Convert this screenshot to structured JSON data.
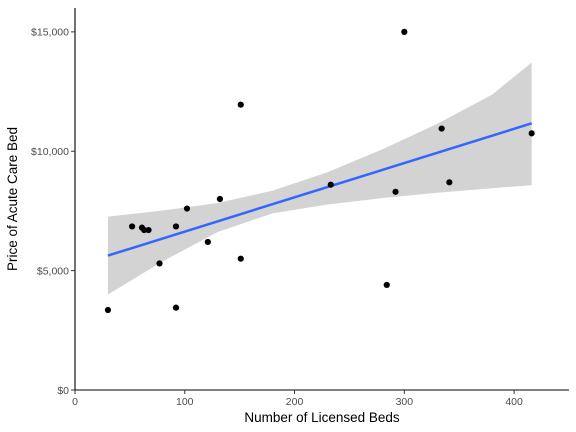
{
  "chart_data": {
    "type": "scatter",
    "title": "",
    "xlabel": "Number of Licensed Beds",
    "ylabel": "Price of Acute Care Bed",
    "xlim": [
      0,
      450
    ],
    "ylim": [
      0,
      16000
    ],
    "x_ticks": [
      {
        "value": 0,
        "label": "0"
      },
      {
        "value": 100,
        "label": "100"
      },
      {
        "value": 200,
        "label": "200"
      },
      {
        "value": 300,
        "label": "300"
      },
      {
        "value": 400,
        "label": "400"
      }
    ],
    "y_ticks": [
      {
        "value": 0,
        "label": "$0"
      },
      {
        "value": 5000,
        "label": "$5,000"
      },
      {
        "value": 10000,
        "label": "$10,000"
      },
      {
        "value": 15000,
        "label": "$15,000"
      }
    ],
    "grid": false,
    "points": [
      {
        "x": 30,
        "y": 3350
      },
      {
        "x": 52,
        "y": 6850
      },
      {
        "x": 61,
        "y": 6800
      },
      {
        "x": 63,
        "y": 6700
      },
      {
        "x": 67,
        "y": 6700
      },
      {
        "x": 77,
        "y": 5300
      },
      {
        "x": 92,
        "y": 6850
      },
      {
        "x": 92,
        "y": 3450
      },
      {
        "x": 102,
        "y": 7600
      },
      {
        "x": 121,
        "y": 6200
      },
      {
        "x": 132,
        "y": 8000
      },
      {
        "x": 151,
        "y": 11950
      },
      {
        "x": 151,
        "y": 5500
      },
      {
        "x": 233,
        "y": 8600
      },
      {
        "x": 284,
        "y": 4400
      },
      {
        "x": 292,
        "y": 8300
      },
      {
        "x": 300,
        "y": 15000
      },
      {
        "x": 334,
        "y": 10950
      },
      {
        "x": 341,
        "y": 8700
      },
      {
        "x": 416,
        "y": 10750
      }
    ],
    "fit": {
      "method": "linear",
      "x": [
        30,
        416
      ],
      "y": [
        5630,
        11170
      ],
      "color": "#3366ff"
    },
    "confidence_band": {
      "x": [
        30,
        80,
        130,
        180,
        230,
        280,
        330,
        380,
        416
      ],
      "lower": [
        4000,
        5390,
        6620,
        7400,
        7770,
        8040,
        8260,
        8450,
        8580
      ],
      "upper": [
        7260,
        7520,
        7830,
        8350,
        9120,
        10080,
        11150,
        12370,
        13720
      ],
      "color": "#d3d3d3"
    },
    "point_color": "#000000"
  }
}
